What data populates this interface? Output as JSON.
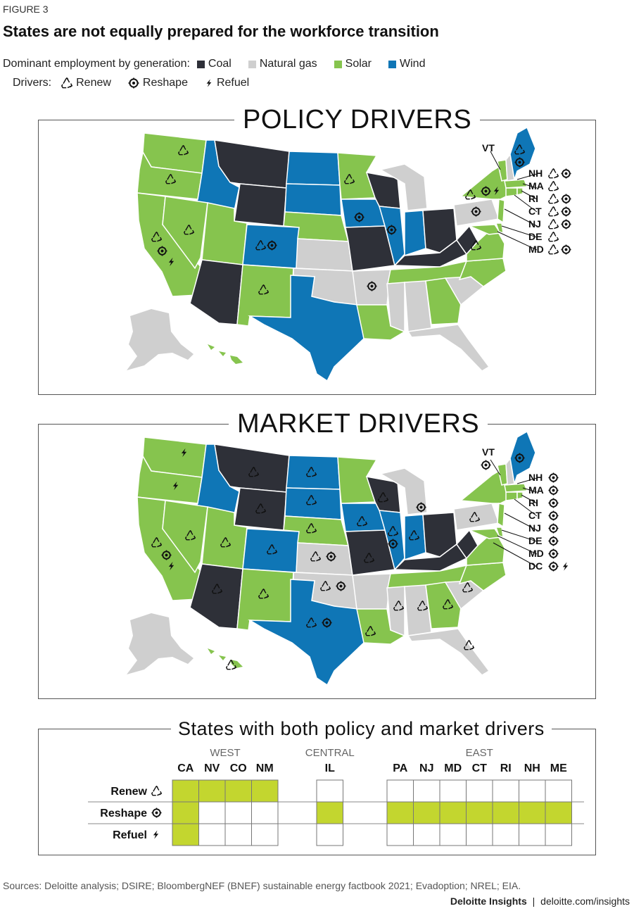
{
  "figure_label": "FIGURE 3",
  "title": "States are not equally prepared for the workforce transition",
  "legend": {
    "generation_label": "Dominant employment by generation:",
    "generation": [
      {
        "name": "Coal",
        "color": "#2e3038"
      },
      {
        "name": "Natural gas",
        "color": "#cfcfcf"
      },
      {
        "name": "Solar",
        "color": "#86c44e"
      },
      {
        "name": "Wind",
        "color": "#0f76b6"
      }
    ],
    "drivers_label": "Drivers:",
    "drivers": [
      {
        "name": "Renew",
        "icon": "recycle-icon"
      },
      {
        "name": "Reshape",
        "icon": "target-icon"
      },
      {
        "name": "Refuel",
        "icon": "lightning-icon"
      }
    ]
  },
  "policy_map": {
    "title": "POLICY DRIVERS",
    "callouts": [
      {
        "state": "VT",
        "icons": []
      },
      {
        "state": "NH",
        "icons": [
          "recycle-icon",
          "target-icon"
        ]
      },
      {
        "state": "MA",
        "icons": [
          "recycle-icon"
        ]
      },
      {
        "state": "RI",
        "icons": [
          "recycle-icon",
          "target-icon"
        ]
      },
      {
        "state": "CT",
        "icons": [
          "recycle-icon",
          "target-icon"
        ]
      },
      {
        "state": "NJ",
        "icons": [
          "recycle-icon",
          "target-icon"
        ]
      },
      {
        "state": "DE",
        "icons": [
          "recycle-icon"
        ]
      },
      {
        "state": "MD",
        "icons": [
          "recycle-icon",
          "target-icon"
        ]
      }
    ]
  },
  "market_map": {
    "title": "MARKET DRIVERS",
    "callouts": [
      {
        "state": "VT",
        "icons": [
          "target-icon"
        ]
      },
      {
        "state": "NH",
        "icons": [
          "target-icon"
        ]
      },
      {
        "state": "MA",
        "icons": [
          "target-icon"
        ]
      },
      {
        "state": "RI",
        "icons": [
          "target-icon"
        ]
      },
      {
        "state": "CT",
        "icons": [
          "target-icon"
        ]
      },
      {
        "state": "NJ",
        "icons": [
          "target-icon"
        ]
      },
      {
        "state": "DE",
        "icons": [
          "target-icon"
        ]
      },
      {
        "state": "MD",
        "icons": [
          "target-icon"
        ]
      },
      {
        "state": "DC",
        "icons": [
          "target-icon",
          "lightning-icon"
        ]
      }
    ]
  },
  "both_table": {
    "title": "States with both policy and market drivers",
    "highlight_color": "#c3d62f",
    "groups": [
      {
        "name": "WEST",
        "states": [
          "CA",
          "NV",
          "CO",
          "NM"
        ]
      },
      {
        "name": "CENTRAL",
        "states": [
          "IL"
        ]
      },
      {
        "name": "EAST",
        "states": [
          "PA",
          "NJ",
          "MD",
          "CT",
          "RI",
          "NH",
          "ME"
        ]
      }
    ],
    "rows": [
      {
        "label": "Renew",
        "icon": "recycle-icon",
        "cells": [
          1,
          1,
          1,
          1,
          0,
          0,
          0,
          0,
          0,
          0,
          0,
          0
        ]
      },
      {
        "label": "Reshape",
        "icon": "target-icon",
        "cells": [
          1,
          0,
          0,
          0,
          1,
          1,
          1,
          1,
          1,
          1,
          1,
          1
        ]
      },
      {
        "label": "Refuel",
        "icon": "lightning-icon",
        "cells": [
          1,
          0,
          0,
          0,
          0,
          0,
          0,
          0,
          0,
          0,
          0,
          0
        ]
      }
    ]
  },
  "sources": "Sources: Deloitte analysis; DSIRE; BloombergNEF (BNEF) sustainable energy factbook 2021; Evadoption; NREL; EIA.",
  "brand": {
    "name": "Deloitte Insights",
    "sep": "|",
    "url": "deloitte.com/insights"
  }
}
